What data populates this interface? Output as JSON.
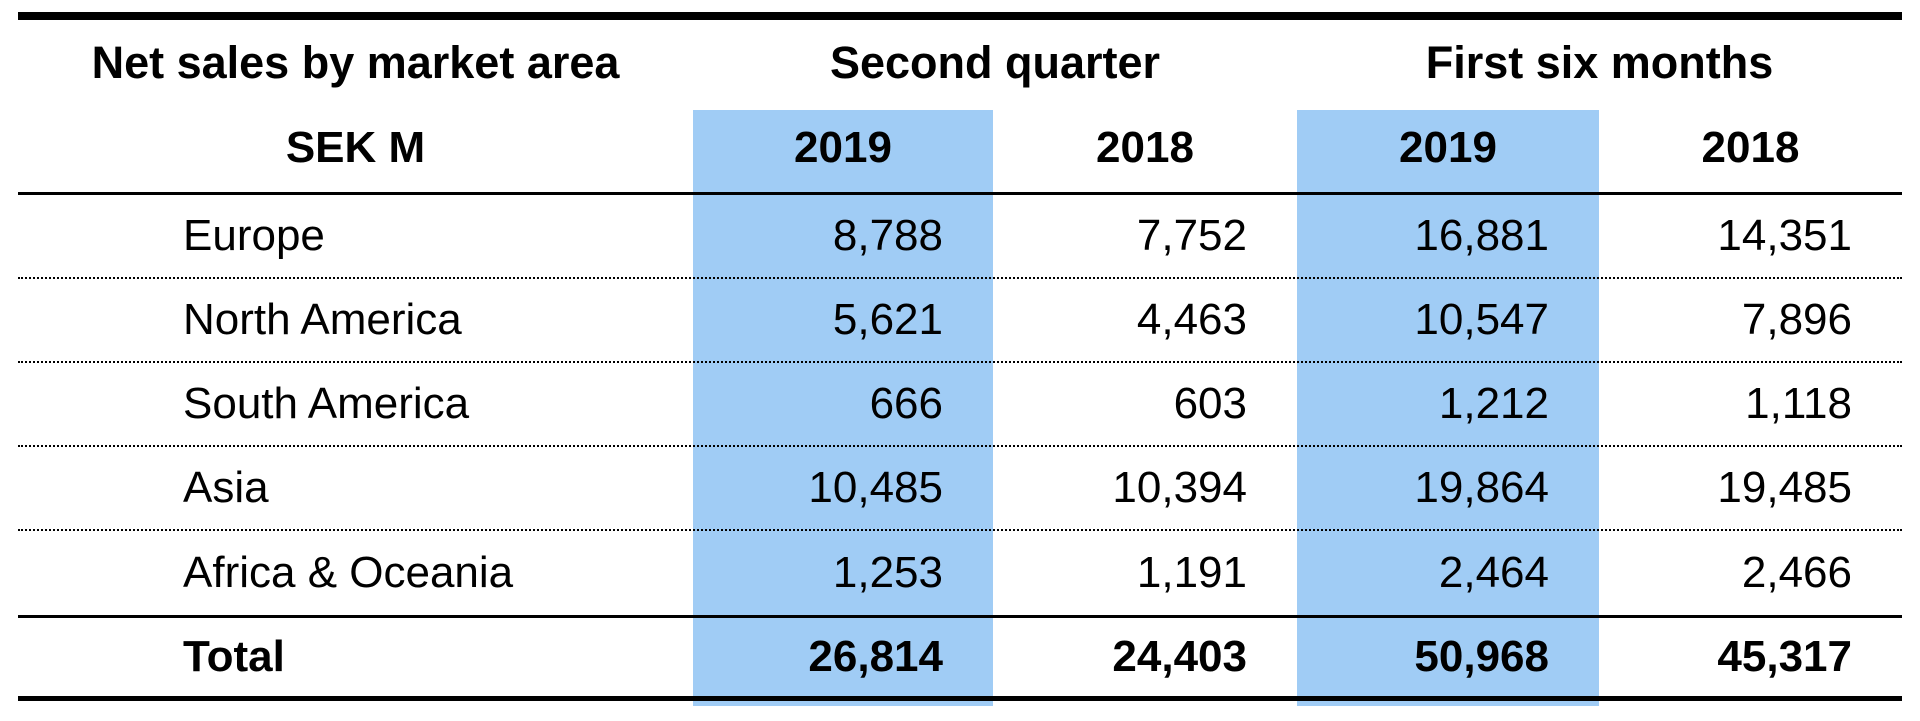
{
  "table": {
    "title_line1": "Net sales by market area",
    "title_line2": "SEK M",
    "group_headers": [
      "Second quarter",
      "First six months"
    ],
    "year_headers": [
      "2019",
      "2018",
      "2019",
      "2018"
    ],
    "rows": [
      {
        "label": "Europe",
        "values": [
          "8,788",
          "7,752",
          "16,881",
          "14,351"
        ]
      },
      {
        "label": "North America",
        "values": [
          "5,621",
          "4,463",
          "10,547",
          "7,896"
        ]
      },
      {
        "label": "South America",
        "values": [
          "666",
          "603",
          "1,212",
          "1,118"
        ]
      },
      {
        "label": "Asia",
        "values": [
          "10,485",
          "10,394",
          "19,864",
          "19,485"
        ]
      },
      {
        "label": "Africa & Oceania",
        "values": [
          "1,253",
          "1,191",
          "2,464",
          "2,466"
        ]
      }
    ],
    "total": {
      "label": "Total",
      "values": [
        "26,814",
        "24,403",
        "50,968",
        "45,317"
      ]
    }
  },
  "colors": {
    "highlight": "#A0CCF5",
    "text": "#000000",
    "background": "#ffffff"
  },
  "chart_data": {
    "type": "table",
    "title": "Net sales by market area (SEK M)",
    "column_groups": [
      "Second quarter",
      "First six months"
    ],
    "columns": [
      "Second quarter 2019",
      "Second quarter 2018",
      "First six months 2019",
      "First six months 2018"
    ],
    "highlighted_columns": [
      "Second quarter 2019",
      "First six months 2019"
    ],
    "rows": [
      {
        "label": "Europe",
        "values": [
          8788,
          7752,
          16881,
          14351
        ]
      },
      {
        "label": "North America",
        "values": [
          5621,
          4463,
          10547,
          7896
        ]
      },
      {
        "label": "South America",
        "values": [
          666,
          603,
          1212,
          1118
        ]
      },
      {
        "label": "Asia",
        "values": [
          10485,
          10394,
          19864,
          19485
        ]
      },
      {
        "label": "Africa & Oceania",
        "values": [
          1253,
          1191,
          2464,
          2466
        ]
      },
      {
        "label": "Total",
        "values": [
          26814,
          24403,
          50968,
          45317
        ]
      }
    ]
  }
}
